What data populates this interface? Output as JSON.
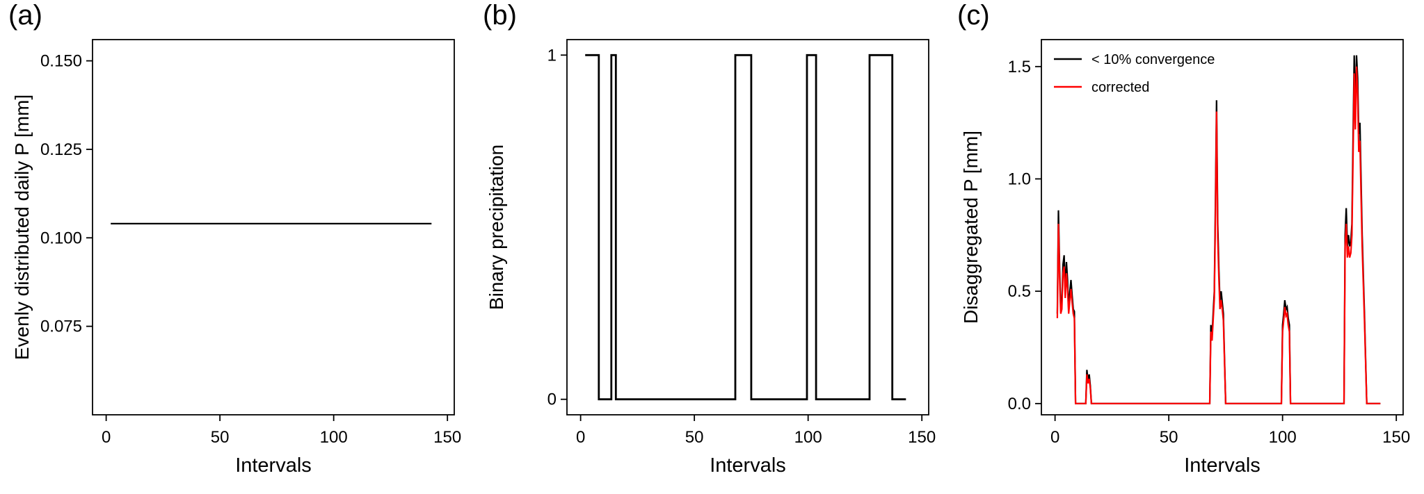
{
  "figure": {
    "background": "#ffffff",
    "axis_color": "#000000"
  },
  "chart_data": [
    {
      "type": "line",
      "panel_label": "(a)",
      "title": "",
      "xlabel": "Intervals",
      "ylabel": "Evenly distributed daily P [mm]",
      "xlim": [
        -6,
        153
      ],
      "ylim": [
        0.05,
        0.156
      ],
      "xticks": [
        0,
        50,
        100,
        150
      ],
      "yticks": [
        0.075,
        0.1,
        0.125,
        0.15
      ],
      "ytick_labels": [
        "0.075",
        "0.100",
        "0.125",
        "0.150"
      ],
      "grid": false,
      "series": [
        {
          "name": "evenly-distributed-daily-p",
          "color": "#000000",
          "linewidth": 2.2,
          "x": [
            2,
            143
          ],
          "y": [
            0.104,
            0.104
          ]
        }
      ]
    },
    {
      "type": "line",
      "panel_label": "(b)",
      "title": "",
      "xlabel": "Intervals",
      "ylabel": "Binary precipitation",
      "xlim": [
        -6,
        153
      ],
      "ylim": [
        -0.045,
        1.045
      ],
      "xticks": [
        0,
        50,
        100,
        150
      ],
      "yticks": [
        0,
        1
      ],
      "ytick_labels": [
        "0",
        "1"
      ],
      "grid": false,
      "series": [
        {
          "name": "binary-precipitation",
          "color": "#000000",
          "linewidth": 2.8,
          "x": [
            2,
            8,
            8,
            13.5,
            13.5,
            15.5,
            15.5,
            68,
            68,
            75,
            75,
            99.5,
            99.5,
            103.5,
            103.5,
            127,
            127,
            137,
            137,
            143
          ],
          "y": [
            1,
            1,
            0,
            0,
            1,
            1,
            0,
            0,
            1,
            1,
            0,
            0,
            1,
            1,
            0,
            0,
            1,
            1,
            0,
            0
          ]
        }
      ]
    },
    {
      "type": "line",
      "panel_label": "(c)",
      "title": "",
      "xlabel": "Intervals",
      "ylabel": "Disaggregated P [mm]",
      "xlim": [
        -6,
        153
      ],
      "ylim": [
        -0.05,
        1.62
      ],
      "xticks": [
        0,
        50,
        100,
        150
      ],
      "yticks": [
        0,
        0.5,
        1,
        1.5
      ],
      "ytick_labels": [
        "0.0",
        "0.5",
        "1.0",
        "1.5"
      ],
      "grid": false,
      "x": [
        1,
        1.5,
        2,
        2.5,
        3,
        3.5,
        4,
        4.5,
        5,
        5.5,
        6,
        6.5,
        7,
        7.5,
        8,
        8.5,
        9,
        13.5,
        14,
        14.5,
        15,
        15.5,
        16,
        68,
        68.5,
        69,
        69.5,
        70,
        70.5,
        71,
        71.5,
        72,
        72.5,
        73,
        73.5,
        74,
        75,
        99.5,
        100,
        100.5,
        101,
        101.5,
        102,
        102.5,
        103,
        103.5,
        127,
        127.5,
        128,
        128.5,
        129,
        129.5,
        130,
        130.5,
        131,
        131.5,
        132,
        132.5,
        133,
        133.5,
        134,
        134.5,
        135,
        136,
        137,
        143
      ],
      "series": [
        {
          "name": "lt-10pct-convergence",
          "color": "#000000",
          "linewidth": 2.2,
          "y": [
            0.4,
            0.86,
            0.6,
            0.42,
            0.45,
            0.62,
            0.66,
            0.5,
            0.63,
            0.55,
            0.42,
            0.5,
            0.55,
            0.48,
            0.42,
            0.41,
            0.0,
            0.0,
            0.15,
            0.1,
            0.13,
            0.08,
            0.0,
            0.0,
            0.35,
            0.3,
            0.4,
            0.5,
            0.9,
            1.35,
            0.8,
            0.6,
            0.45,
            0.5,
            0.45,
            0.4,
            0.0,
            0.0,
            0.35,
            0.4,
            0.46,
            0.42,
            0.43,
            0.38,
            0.35,
            0.0,
            0.0,
            0.75,
            0.87,
            0.7,
            0.75,
            0.7,
            0.72,
            0.8,
            1.2,
            1.55,
            1.3,
            1.55,
            1.45,
            1.2,
            1.25,
            1.0,
            0.75,
            0.4,
            0.0,
            0.0
          ]
        },
        {
          "name": "corrected",
          "color": "#ff0000",
          "linewidth": 2.2,
          "y": [
            0.38,
            0.8,
            0.56,
            0.4,
            0.42,
            0.58,
            0.61,
            0.47,
            0.58,
            0.51,
            0.4,
            0.46,
            0.51,
            0.45,
            0.4,
            0.38,
            0.0,
            0.0,
            0.13,
            0.09,
            0.11,
            0.07,
            0.0,
            0.0,
            0.32,
            0.28,
            0.37,
            0.47,
            0.84,
            1.3,
            0.74,
            0.56,
            0.42,
            0.46,
            0.42,
            0.37,
            0.0,
            0.0,
            0.32,
            0.37,
            0.43,
            0.39,
            0.4,
            0.35,
            0.32,
            0.0,
            0.0,
            0.7,
            0.8,
            0.65,
            0.7,
            0.65,
            0.67,
            0.75,
            1.12,
            1.47,
            1.22,
            1.5,
            1.38,
            1.12,
            1.17,
            0.93,
            0.7,
            0.37,
            0.0,
            0.0
          ]
        }
      ],
      "legend": {
        "position": "top-left-inside",
        "entries": [
          {
            "label": "< 10% convergence",
            "color": "#000000"
          },
          {
            "label": "corrected",
            "color": "#ff0000"
          }
        ]
      }
    }
  ]
}
